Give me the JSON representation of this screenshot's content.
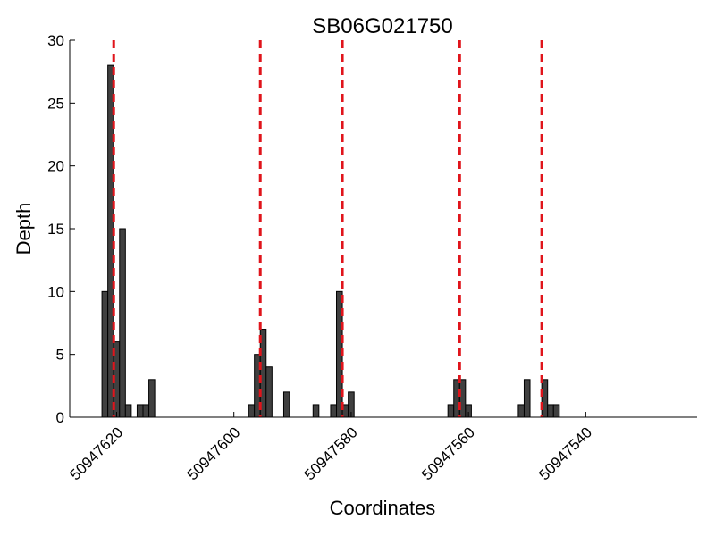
{
  "chart_data": {
    "type": "bar",
    "title": "SB06G021750",
    "xlabel": "Coordinates",
    "ylabel": "Depth",
    "x_reversed": true,
    "xlim": [
      50947628,
      50947521
    ],
    "ylim": [
      0,
      30
    ],
    "yticks": [
      0,
      5,
      10,
      15,
      20,
      25,
      30
    ],
    "xticks": [
      50947620,
      50947600,
      50947580,
      50947560,
      50947540
    ],
    "bar_color": "#404040",
    "line_color": "#e0141b",
    "bars": [
      {
        "x": 50947622,
        "value": 10
      },
      {
        "x": 50947621,
        "value": 28
      },
      {
        "x": 50947620,
        "value": 6
      },
      {
        "x": 50947619,
        "value": 15
      },
      {
        "x": 50947618,
        "value": 1
      },
      {
        "x": 50947616,
        "value": 1
      },
      {
        "x": 50947615,
        "value": 1
      },
      {
        "x": 50947614,
        "value": 3
      },
      {
        "x": 50947597,
        "value": 1
      },
      {
        "x": 50947596,
        "value": 5
      },
      {
        "x": 50947595,
        "value": 7
      },
      {
        "x": 50947594,
        "value": 4
      },
      {
        "x": 50947591,
        "value": 2
      },
      {
        "x": 50947586,
        "value": 1
      },
      {
        "x": 50947583,
        "value": 1
      },
      {
        "x": 50947582,
        "value": 10
      },
      {
        "x": 50947581,
        "value": 1
      },
      {
        "x": 50947580,
        "value": 2
      },
      {
        "x": 50947563,
        "value": 1
      },
      {
        "x": 50947562,
        "value": 3
      },
      {
        "x": 50947561,
        "value": 3
      },
      {
        "x": 50947560,
        "value": 1
      },
      {
        "x": 50947551,
        "value": 1
      },
      {
        "x": 50947550,
        "value": 3
      },
      {
        "x": 50947547,
        "value": 3
      },
      {
        "x": 50947546,
        "value": 1
      },
      {
        "x": 50947545,
        "value": 1
      }
    ],
    "vlines": [
      50947620.5,
      50947595.5,
      50947581.5,
      50947561.5,
      50947547.5
    ]
  }
}
